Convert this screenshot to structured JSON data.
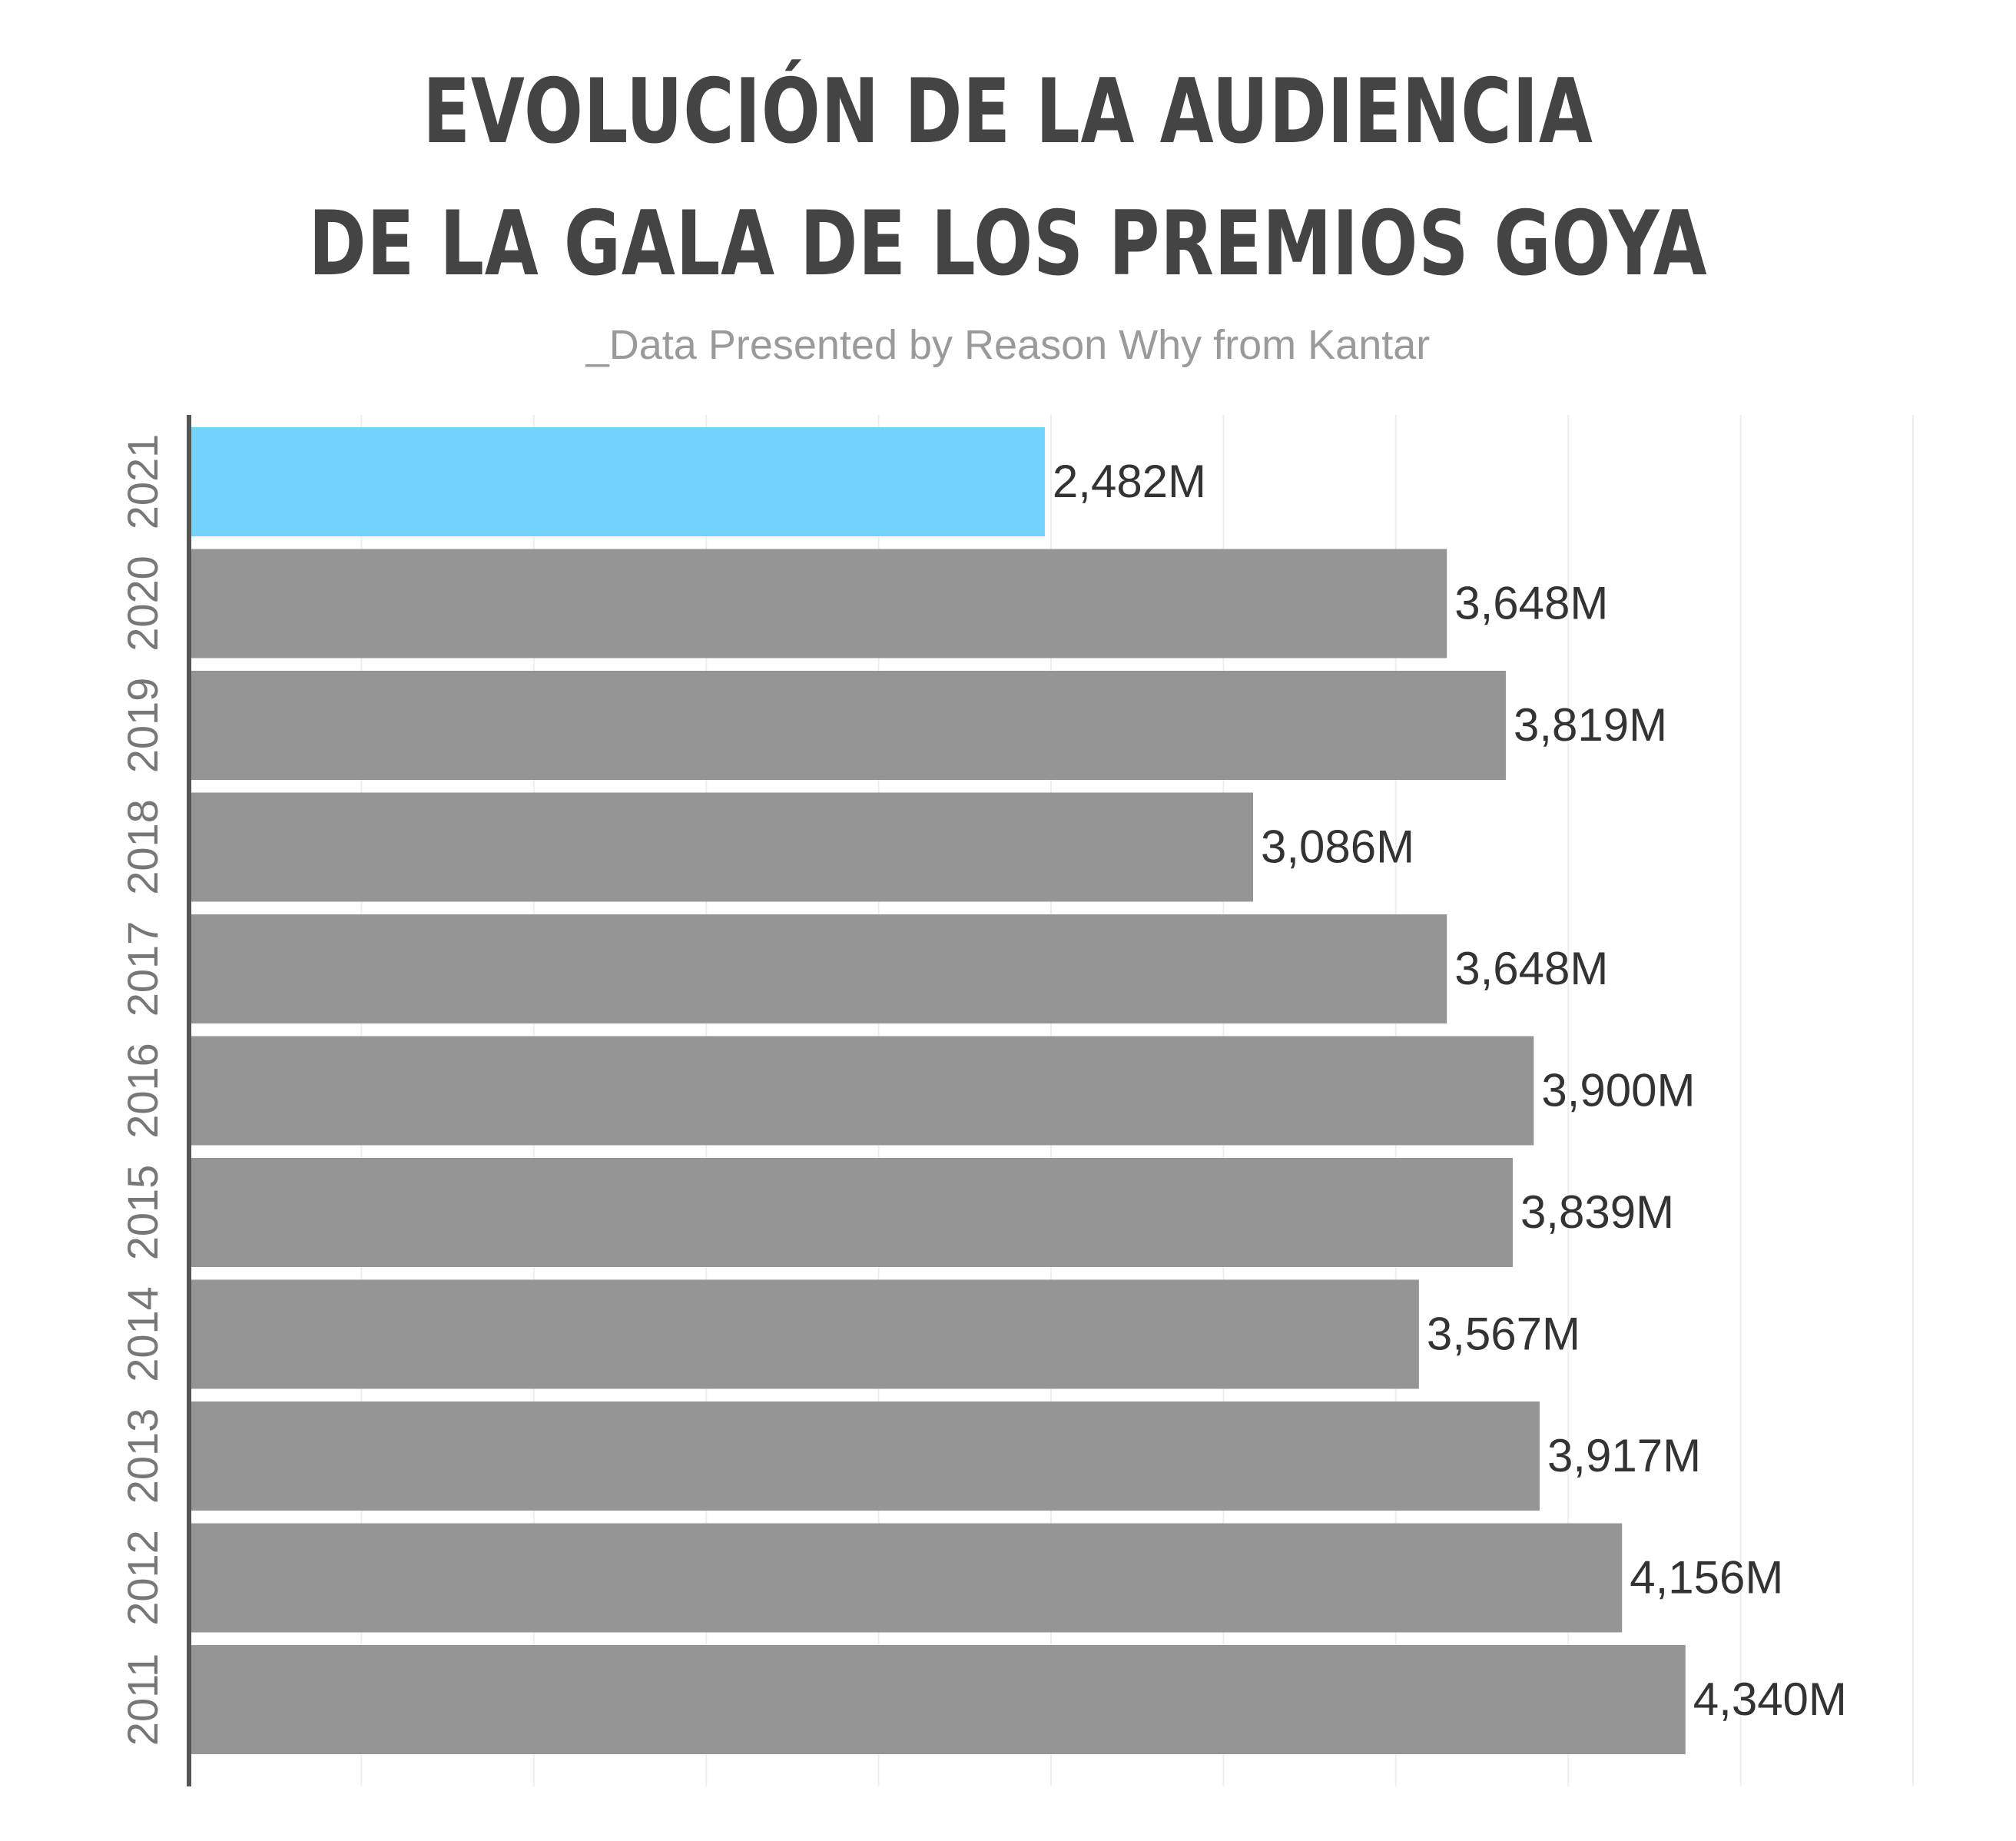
{
  "title_line1": "EVOLUCIÓN DE LA AUDIENCIA",
  "title_line2": "DE LA GALA DE LOS PREMIOS GOYA",
  "subtitle": "_Data Presented by Reason Why from Kantar",
  "colors": {
    "highlight": "#74d3fe",
    "bar": "#959595",
    "axis": "#555555",
    "grid": "#eeeeee",
    "title": "#444444",
    "subtitle": "#9a9a9a"
  },
  "chart_data": {
    "type": "bar",
    "orientation": "horizontal",
    "categories": [
      "2021",
      "2020",
      "2019",
      "2018",
      "2017",
      "2016",
      "2015",
      "2014",
      "2013",
      "2012",
      "2011"
    ],
    "values": [
      2482,
      3648,
      3819,
      3086,
      3648,
      3900,
      3839,
      3567,
      3917,
      4156,
      4340
    ],
    "value_labels": [
      "2,482M",
      "3,648M",
      "3,819M",
      "3,086M",
      "3,648M",
      "3,900M",
      "3,839M",
      "3,567M",
      "3,917M",
      "4,156M",
      "4,340M"
    ],
    "highlight_index": 0,
    "xlim": [
      0,
      5000
    ],
    "grid": true,
    "year_labels_rotated": true
  }
}
